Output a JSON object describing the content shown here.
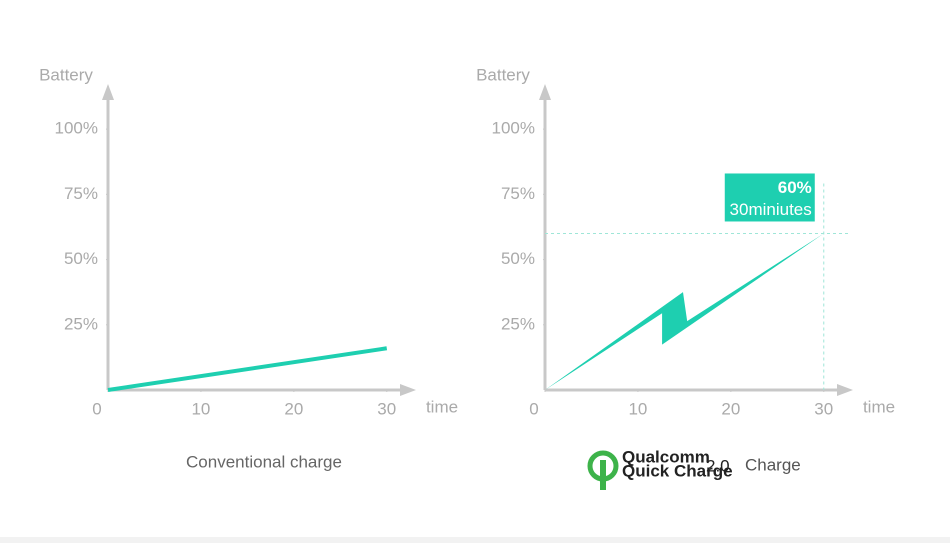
{
  "chart_data": [
    {
      "type": "line",
      "y_label": "Battery",
      "x_label": "time",
      "caption": "Conventional charge",
      "x": [
        0,
        30
      ],
      "series": [
        {
          "color": "#1ecfb0",
          "values": [
            0,
            16
          ]
        }
      ],
      "xlim": [
        0,
        32.5
      ],
      "ylim": [
        0,
        115
      ],
      "xticks": [
        0,
        10,
        20,
        30
      ],
      "yticks": [
        {
          "value": 25,
          "label": "25%"
        },
        {
          "value": 50,
          "label": "50%"
        },
        {
          "value": 75,
          "label": "75%"
        },
        {
          "value": 100,
          "label": "100%"
        }
      ]
    },
    {
      "type": "line",
      "shape": "bolt",
      "y_label": "Battery",
      "x_label": "time",
      "logo": {
        "brand": "Qualcomm",
        "product": "Quick Charge",
        "version": "2.0"
      },
      "caption": "Charge",
      "x": [
        0,
        30
      ],
      "series": [
        {
          "color": "#1ecfb0",
          "values": [
            0,
            60
          ]
        }
      ],
      "annotation": {
        "value": 60,
        "label": "60%",
        "text": "30miniutes"
      },
      "xlim": [
        0,
        32.5
      ],
      "ylim": [
        0,
        115
      ],
      "xticks": [
        0,
        10,
        20,
        30
      ],
      "yticks": [
        {
          "value": 25,
          "label": "25%"
        },
        {
          "value": 50,
          "label": "50%"
        },
        {
          "value": 75,
          "label": "75%"
        },
        {
          "value": 100,
          "label": "100%"
        }
      ]
    }
  ]
}
